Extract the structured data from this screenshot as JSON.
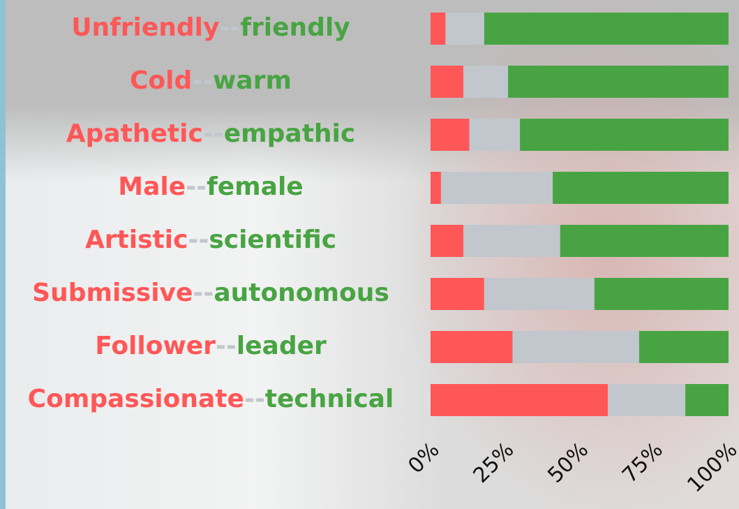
{
  "chart_data": {
    "type": "stacked-bar",
    "orientation": "horizontal",
    "left_labels": [
      "Unfriendly",
      "Cold",
      "Apathetic",
      "Male",
      "Artistic",
      "Submissive",
      "Follower",
      "Compassionate"
    ],
    "right_labels": [
      "friendly",
      "warm",
      "empathic",
      "female",
      "scientific",
      "autonomous",
      "leader",
      "technical"
    ],
    "separator": "--",
    "series": [
      {
        "color": "#ff5757",
        "values": [
          5,
          11,
          13,
          3.5,
          11,
          18,
          27.5,
          59.5
        ]
      },
      {
        "color": "#c1c7cd",
        "values": [
          13,
          15,
          17,
          37.5,
          32.5,
          37,
          42.5,
          26
        ]
      },
      {
        "color": "#48a443",
        "values": [
          82,
          74,
          70,
          59,
          56.5,
          45,
          30,
          14.5
        ]
      }
    ],
    "xlim": [
      0,
      100
    ],
    "xticks": [
      {
        "value": 0,
        "label": "0%"
      },
      {
        "value": 25,
        "label": "25%"
      },
      {
        "value": 50,
        "label": "50%"
      },
      {
        "value": 75,
        "label": "75%"
      },
      {
        "value": 100,
        "label": "100%"
      }
    ]
  }
}
